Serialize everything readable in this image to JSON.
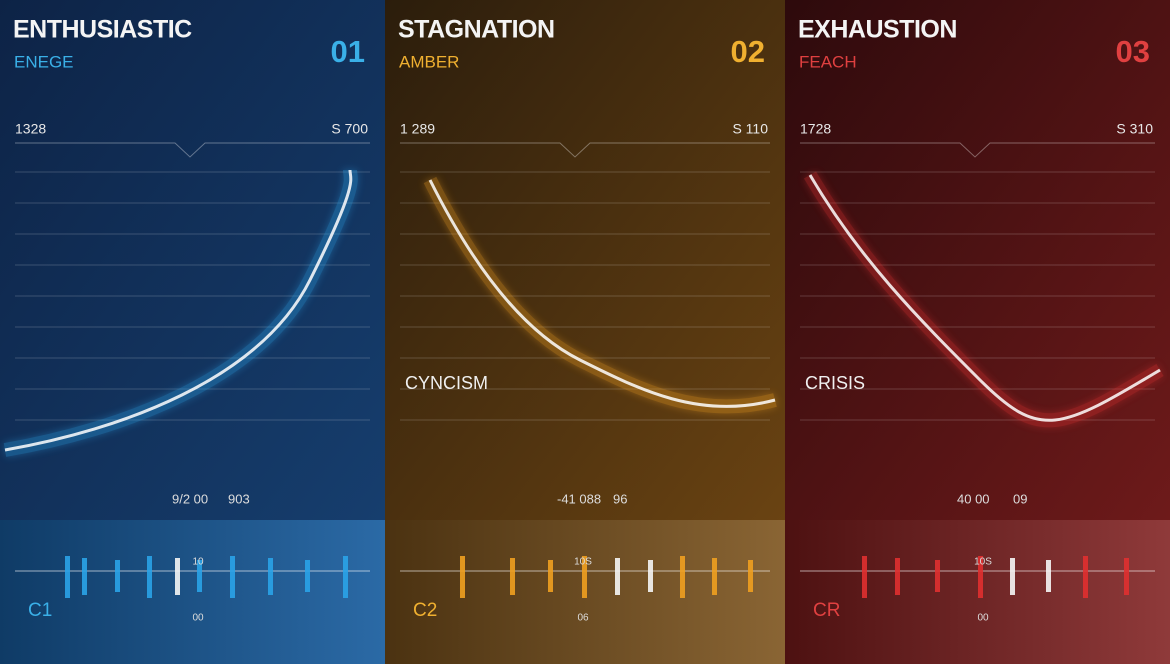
{
  "panels": [
    {
      "title": "ENTHUSIASTIC",
      "subtitle": "ENEGE",
      "number": "01",
      "left_value": "1328",
      "right_value": "S 700",
      "footer_value": "9/2 00",
      "footer_code": "903",
      "strip_label": "C1",
      "strip_top": "10",
      "strip_bottom": "00"
    },
    {
      "title": "STAGNATION",
      "subtitle": "AMBER",
      "number": "02",
      "left_value": "1 289",
      "right_value": "S 110",
      "phase": "CYNCISM",
      "footer_value": "-41 088",
      "footer_code": "96",
      "strip_label": "C2",
      "strip_top": "10S",
      "strip_bottom": "06"
    },
    {
      "title": "EXHAUSTION",
      "subtitle": "FEACH",
      "number": "03",
      "left_value": "1728",
      "right_value": "S 310",
      "phase": "CRISIS",
      "footer_value": "40 00",
      "footer_code": "09",
      "strip_label": "CR",
      "strip_top": "10S",
      "strip_bottom": "00"
    }
  ]
}
